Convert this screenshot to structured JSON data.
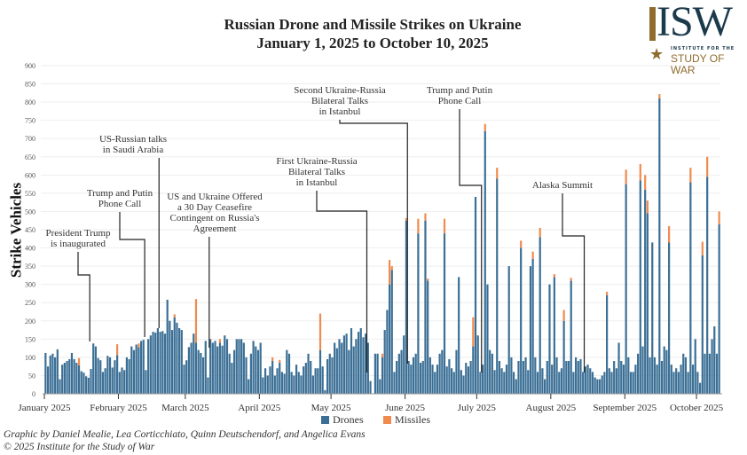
{
  "chart_data": {
    "type": "bar",
    "stacked": true,
    "title": "Russian Drone and Missile Strikes on Ukraine",
    "subtitle": "January 1, 2025 to October 10, 2025",
    "ylabel": "Strike Vehicles",
    "xlabel": "",
    "ylim": [
      0,
      900
    ],
    "yticks": [
      "0",
      "50",
      "100",
      "150",
      "200",
      "250",
      "300",
      "350",
      "400",
      "450",
      "500",
      "550",
      "600",
      "650",
      "700",
      "750",
      "800",
      "850",
      "900"
    ],
    "xrange": [
      "2025-01-01",
      "2025-10-10"
    ],
    "xticks": [
      {
        "date": "2025-01-01",
        "label": "January 2025"
      },
      {
        "date": "2025-02-01",
        "label": "February 2025"
      },
      {
        "date": "2025-03-01",
        "label": "March 2025"
      },
      {
        "date": "2025-04-01",
        "label": "April 2025"
      },
      {
        "date": "2025-05-01",
        "label": "May 2025"
      },
      {
        "date": "2025-06-01",
        "label": "June 2025"
      },
      {
        "date": "2025-07-01",
        "label": "July 2025"
      },
      {
        "date": "2025-08-01",
        "label": "August 2025"
      },
      {
        "date": "2025-09-01",
        "label": "September 2025"
      },
      {
        "date": "2025-10-01",
        "label": "October 2025"
      }
    ],
    "grid": true,
    "legend_position": "bottom",
    "series": [
      {
        "name": "Drones",
        "color": "#3b6f95",
        "values": [
          112,
          75,
          105,
          110,
          100,
          122,
          40,
          80,
          85,
          90,
          95,
          112,
          95,
          85,
          78,
          62,
          58,
          48,
          44,
          68,
          138,
          130,
          98,
          92,
          60,
          70,
          104,
          100,
          72,
          92,
          106,
          60,
          72,
          65,
          100,
          95,
          130,
          120,
          135,
          128,
          145,
          148,
          65,
          150,
          160,
          170,
          168,
          180,
          170,
          172,
          165,
          258,
          200,
          175,
          210,
          195,
          180,
          175,
          80,
          92,
          128,
          140,
          165,
          140,
          120,
          112,
          100,
          145,
          45,
          150,
          140,
          145,
          130,
          140,
          132,
          160,
          150,
          110,
          85,
          120,
          150,
          150,
          150,
          140,
          100,
          40,
          110,
          145,
          130,
          120,
          140,
          45,
          70,
          50,
          75,
          90,
          50,
          70,
          85,
          60,
          55,
          120,
          110,
          60,
          50,
          80,
          60,
          50,
          75,
          85,
          110,
          90,
          50,
          70,
          70,
          120,
          75,
          10,
          95,
          110,
          100,
          140,
          125,
          150,
          140,
          160,
          165,
          120,
          180,
          130,
          150,
          170,
          180,
          155,
          165,
          140,
          35,
          0,
          110,
          110,
          40,
          100,
          175,
          230,
          300,
          340,
          60,
          90,
          110,
          120,
          160,
          475,
          90,
          80,
          100,
          110,
          440,
          85,
          90,
          475,
          310,
          100,
          80,
          60,
          80,
          110,
          120,
          440,
          75,
          95,
          70,
          60,
          120,
          320,
          65,
          50,
          85,
          75,
          90,
          130,
          540,
          160,
          60,
          80,
          720,
          300,
          120,
          110,
          65,
          590,
          90,
          70,
          60,
          80,
          350,
          100,
          60,
          40,
          90,
          400,
          90,
          100,
          65,
          350,
          370,
          100,
          60,
          430,
          70,
          40,
          90,
          300,
          80,
          320,
          100,
          60,
          70,
          200,
          90,
          90,
          310,
          60,
          100,
          90,
          95,
          60,
          75,
          80,
          70,
          60,
          45,
          40,
          40,
          50,
          60,
          270,
          70,
          60,
          90,
          70,
          140,
          90,
          80,
          575,
          100,
          60,
          60,
          80,
          110,
          585,
          130,
          560,
          495,
          100,
          415,
          100,
          80,
          810,
          90,
          130,
          120,
          415,
          80,
          60,
          70,
          60,
          80,
          110,
          100,
          60,
          580,
          80,
          150,
          60,
          30,
          380,
          110,
          595,
          110,
          150,
          185,
          110,
          465
        ]
      },
      {
        "name": "Missiles",
        "color": "#f08b4f",
        "values_by_date": {
          "2025-01-15": 20,
          "2025-01-31": 30,
          "2025-02-09": 10,
          "2025-02-24": 8,
          "2025-03-05": 120,
          "2025-03-15": 10,
          "2025-04-06": 10,
          "2025-04-09": 8,
          "2025-04-26": 100,
          "2025-05-22": 10,
          "2025-05-25": 67,
          "2025-05-26": 10,
          "2025-06-01": 7,
          "2025-06-06": 40,
          "2025-06-09": 20,
          "2025-06-10": 6,
          "2025-06-17": 40,
          "2025-06-29": 80,
          "2025-07-04": 20,
          "2025-07-09": 30,
          "2025-07-19": 20,
          "2025-07-24": 20,
          "2025-07-27": 25,
          "2025-08-02": 8,
          "2025-08-06": 30,
          "2025-08-09": 8,
          "2025-08-24": 10,
          "2025-09-01": 40,
          "2025-09-07": 45,
          "2025-09-09": 40,
          "2025-09-10": 35,
          "2025-09-15": 12,
          "2025-09-19": 45,
          "2025-09-28": 40,
          "2025-10-03": 37,
          "2025-10-05": 55,
          "2025-10-10": 35
        }
      }
    ],
    "annotations": [
      {
        "date": "2025-01-20",
        "text": [
          "President Trump",
          "is inaugurated"
        ]
      },
      {
        "date": "2025-02-12",
        "text": [
          "Trump and Putin",
          "Phone Call"
        ]
      },
      {
        "date": "2025-02-18",
        "text": [
          "US-Russian talks",
          "in Saudi Arabia"
        ]
      },
      {
        "date": "2025-03-11",
        "text": [
          "US and Ukraine Offered",
          "a 30 Day Ceasefire",
          "Contingent on Russia's",
          "Agreement"
        ]
      },
      {
        "date": "2025-05-16",
        "text": [
          "First Ukraine-Russia",
          "Bilateral Talks",
          "in Istanbul"
        ]
      },
      {
        "date": "2025-06-02",
        "text": [
          "Second Ukraine-Russia",
          "Bilateral Talks",
          "in Istanbul"
        ]
      },
      {
        "date": "2025-07-03",
        "text": [
          "Trump and Putin",
          "Phone Call"
        ]
      },
      {
        "date": "2025-08-15",
        "text": [
          "Alaska Summit"
        ]
      }
    ]
  },
  "logo": {
    "text": "ISW",
    "subtitle1": "INSTITUTE FOR THE",
    "subtitle2": "STUDY OF WAR"
  },
  "legend": {
    "drones": "Drones",
    "missiles": "Missiles"
  },
  "credits": {
    "line1": "Graphic by Daniel Mealie, Lea Corticchiato, Quinn Deutschendorf, and Angelica Evans",
    "line2": "© 2025 Institute for the Study of War"
  }
}
